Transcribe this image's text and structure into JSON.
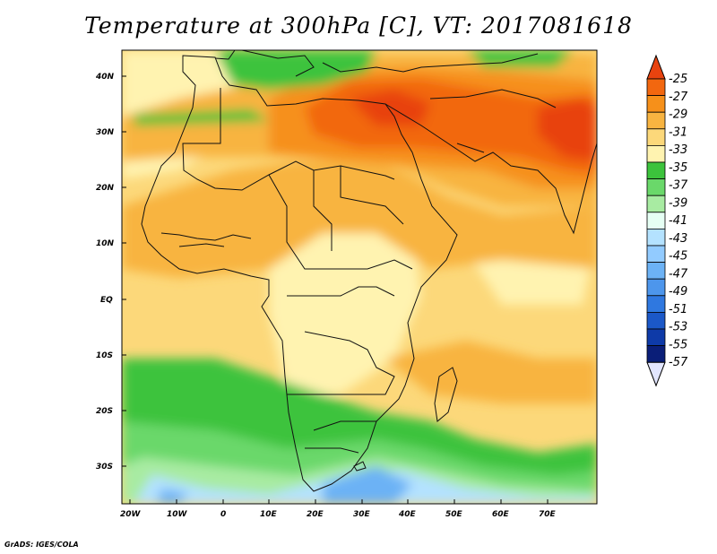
{
  "title": "Temperature at 300hPa [C], VT: 2017081618",
  "footer": "GrADS: IGES/COLA",
  "map": {
    "lat_labels": [
      "40N",
      "30N",
      "20N",
      "10N",
      "EQ",
      "10S",
      "20S",
      "30S"
    ],
    "lon_labels": [
      "20W",
      "10W",
      "0",
      "10E",
      "20E",
      "30E",
      "40E",
      "50E",
      "60E",
      "70E"
    ]
  },
  "colorbar": {
    "labels": [
      "-25",
      "-27",
      "-29",
      "-31",
      "-33",
      "-35",
      "-37",
      "-39",
      "-41",
      "-43",
      "-45",
      "-47",
      "-49",
      "-51",
      "-53",
      "-55",
      "-57"
    ],
    "colors": [
      "#e8430f",
      "#f2670f",
      "#f6901a",
      "#f8b441",
      "#fcd87a",
      "#fff3b0",
      "#3cc33c",
      "#6ad86a",
      "#a8eba2",
      "#e6fff4",
      "#b4e2ff",
      "#92cbff",
      "#6cb2f5",
      "#4d96ec",
      "#2f78e0",
      "#1b58c8",
      "#0e3aa8",
      "#0a1e78",
      "#e2e6ff"
    ]
  }
}
